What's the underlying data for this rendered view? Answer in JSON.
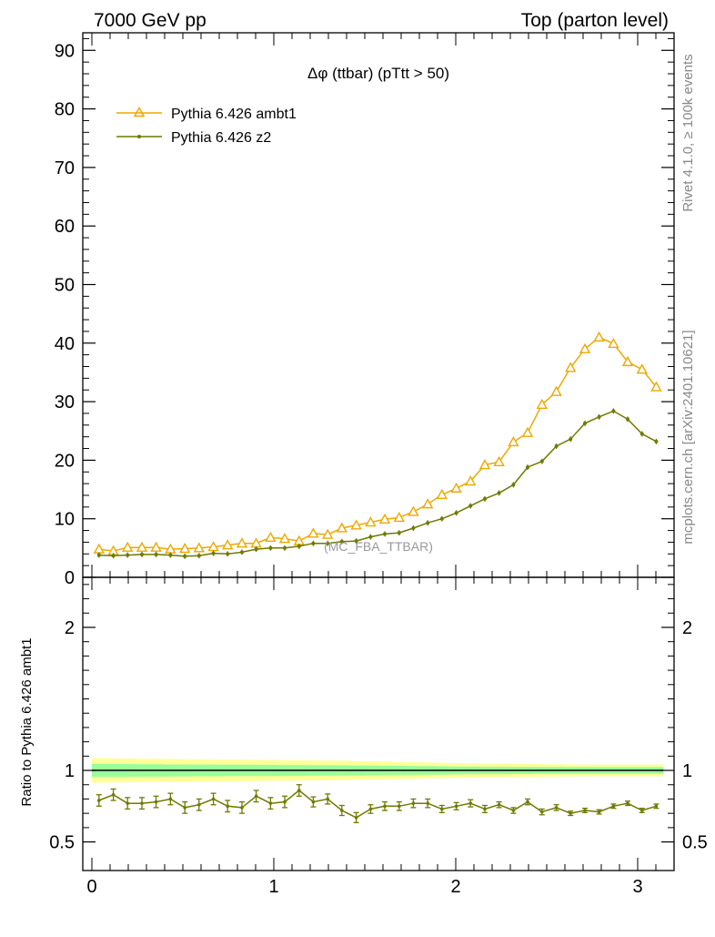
{
  "header": {
    "left": "7000 GeV pp",
    "right": "Top (parton level)"
  },
  "side_labels": {
    "rivet": "Rivet 4.1.0, ≥ 100k events",
    "mcplots": "mcplots.cern.ch [arXiv:2401.10621]"
  },
  "watermark": "(MC_FBA_TTBAR)",
  "colors": {
    "ambt1": "#eea800",
    "z2": "#6f7a00",
    "band_outer": "#ffff99",
    "band_inner": "#99ff99"
  },
  "chart_data": [
    {
      "type": "line",
      "title": "Δφ (ttbar) (pTtt > 50)",
      "xlabel": "",
      "ylabel": "",
      "xlim": [
        -0.05,
        3.2
      ],
      "ylim": [
        0,
        93
      ],
      "yticks": [
        0,
        10,
        20,
        30,
        40,
        50,
        60,
        70,
        80,
        90
      ],
      "x": [
        0.039,
        0.118,
        0.196,
        0.275,
        0.353,
        0.432,
        0.511,
        0.589,
        0.668,
        0.746,
        0.825,
        0.903,
        0.982,
        1.06,
        1.139,
        1.217,
        1.296,
        1.374,
        1.453,
        1.532,
        1.61,
        1.689,
        1.767,
        1.846,
        1.924,
        2.003,
        2.081,
        2.16,
        2.238,
        2.317,
        2.395,
        2.474,
        2.553,
        2.631,
        2.71,
        2.788,
        2.867,
        2.945,
        3.024,
        3.102
      ],
      "series": [
        {
          "name": "Pythia 6.426 ambt1",
          "marker": "triangle",
          "values": [
            4.8,
            4.5,
            5.1,
            5.1,
            5.1,
            4.8,
            4.9,
            5.0,
            5.2,
            5.5,
            5.8,
            5.8,
            6.8,
            6.6,
            6.2,
            7.5,
            7.3,
            8.4,
            8.9,
            9.4,
            9.9,
            10.2,
            11.2,
            12.5,
            14.1,
            15.2,
            16.4,
            19.2,
            19.7,
            23.1,
            24.7,
            29.5,
            31.7,
            35.8,
            39.0,
            41.0,
            39.9,
            36.8,
            35.5,
            32.5
          ]
        },
        {
          "name": "Pythia 6.426 z2",
          "marker": "dot",
          "values": [
            3.8,
            3.7,
            3.8,
            3.9,
            3.9,
            3.8,
            3.6,
            3.7,
            4.1,
            4.0,
            4.3,
            4.8,
            5.0,
            5.0,
            5.3,
            5.8,
            5.8,
            6.1,
            6.2,
            6.9,
            7.4,
            7.6,
            8.4,
            9.3,
            10.0,
            11.0,
            12.2,
            13.4,
            14.4,
            15.8,
            18.8,
            19.8,
            22.4,
            23.6,
            26.3,
            27.4,
            28.4,
            27.0,
            24.5,
            23.2
          ]
        }
      ]
    },
    {
      "type": "line",
      "title": "",
      "ylabel": "Ratio to Pythia 6.426 ambt1",
      "xlim": [
        -0.05,
        3.2
      ],
      "ylim": [
        0.3,
        2.35
      ],
      "yticks": [
        0.5,
        1,
        2
      ],
      "xticks": [
        0,
        1,
        2,
        3
      ],
      "x": [
        0.039,
        0.118,
        0.196,
        0.275,
        0.353,
        0.432,
        0.511,
        0.589,
        0.668,
        0.746,
        0.825,
        0.903,
        0.982,
        1.06,
        1.139,
        1.217,
        1.296,
        1.374,
        1.453,
        1.532,
        1.61,
        1.689,
        1.767,
        1.846,
        1.924,
        2.003,
        2.081,
        2.16,
        2.238,
        2.317,
        2.395,
        2.474,
        2.553,
        2.631,
        2.71,
        2.788,
        2.867,
        2.945,
        3.024,
        3.102
      ],
      "band_outer_halfwidth": [
        0.085,
        0.085,
        0.083,
        0.082,
        0.081,
        0.08,
        0.079,
        0.078,
        0.077,
        0.076,
        0.075,
        0.074,
        0.073,
        0.072,
        0.071,
        0.07,
        0.069,
        0.068,
        0.066,
        0.064,
        0.062,
        0.06,
        0.058,
        0.056,
        0.054,
        0.052,
        0.05,
        0.048,
        0.047,
        0.046,
        0.045,
        0.044,
        0.043,
        0.042,
        0.042,
        0.041,
        0.041,
        0.041,
        0.041,
        0.041
      ],
      "band_inner_halfwidth": [
        0.045,
        0.045,
        0.044,
        0.043,
        0.043,
        0.042,
        0.042,
        0.041,
        0.041,
        0.04,
        0.04,
        0.039,
        0.039,
        0.038,
        0.038,
        0.037,
        0.037,
        0.036,
        0.035,
        0.034,
        0.033,
        0.032,
        0.031,
        0.03,
        0.029,
        0.028,
        0.027,
        0.026,
        0.026,
        0.025,
        0.025,
        0.024,
        0.024,
        0.023,
        0.023,
        0.023,
        0.023,
        0.023,
        0.023,
        0.023
      ],
      "series": [
        {
          "name": "Pythia 6.426 z2",
          "values": [
            0.79,
            0.83,
            0.77,
            0.77,
            0.78,
            0.8,
            0.74,
            0.76,
            0.8,
            0.75,
            0.74,
            0.82,
            0.77,
            0.78,
            0.86,
            0.78,
            0.8,
            0.72,
            0.67,
            0.73,
            0.75,
            0.75,
            0.77,
            0.77,
            0.73,
            0.75,
            0.77,
            0.73,
            0.76,
            0.72,
            0.78,
            0.71,
            0.74,
            0.7,
            0.72,
            0.71,
            0.75,
            0.77,
            0.72,
            0.75
          ],
          "errors": [
            0.04,
            0.04,
            0.04,
            0.04,
            0.04,
            0.04,
            0.04,
            0.04,
            0.04,
            0.04,
            0.04,
            0.04,
            0.04,
            0.04,
            0.04,
            0.035,
            0.035,
            0.035,
            0.035,
            0.03,
            0.03,
            0.03,
            0.03,
            0.03,
            0.025,
            0.025,
            0.025,
            0.025,
            0.02,
            0.02,
            0.02,
            0.02,
            0.02,
            0.015,
            0.015,
            0.015,
            0.015,
            0.015,
            0.015,
            0.015
          ]
        }
      ]
    }
  ]
}
